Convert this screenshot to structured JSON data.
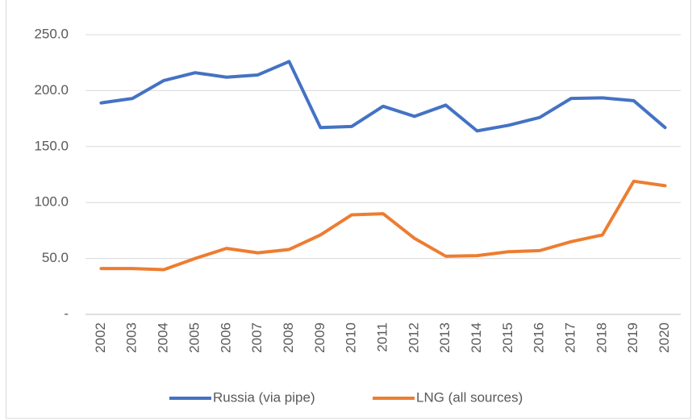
{
  "chart_data": {
    "type": "line",
    "categories": [
      "2002",
      "2003",
      "2004",
      "2005",
      "2006",
      "2007",
      "2008",
      "2009",
      "2010",
      "2011",
      "2012",
      "2013",
      "2014",
      "2015",
      "2016",
      "2017",
      "2018",
      "2019",
      "2020"
    ],
    "series": [
      {
        "name": "Russia (via pipe)",
        "color": "#4472c4",
        "values": [
          189,
          193,
          209,
          216,
          212,
          214,
          226,
          167,
          168,
          186,
          177,
          187,
          164,
          169,
          176,
          193,
          193.5,
          191,
          167
        ]
      },
      {
        "name": "LNG (all sources)",
        "color": "#ed7d31",
        "values": [
          41,
          41,
          40,
          50,
          59,
          55,
          58,
          71,
          89,
          90,
          68,
          52,
          52.5,
          56,
          57,
          65,
          71,
          119,
          115
        ]
      }
    ],
    "ylim": [
      0,
      250
    ],
    "yticks": [
      {
        "value": 0,
        "label": "-"
      },
      {
        "value": 50,
        "label": "50.0"
      },
      {
        "value": 100,
        "label": "100.0"
      },
      {
        "value": 150,
        "label": "150.0"
      },
      {
        "value": 200,
        "label": "200.0"
      },
      {
        "value": 250,
        "label": "250.0"
      }
    ],
    "grid": true,
    "legend": "bottom"
  }
}
